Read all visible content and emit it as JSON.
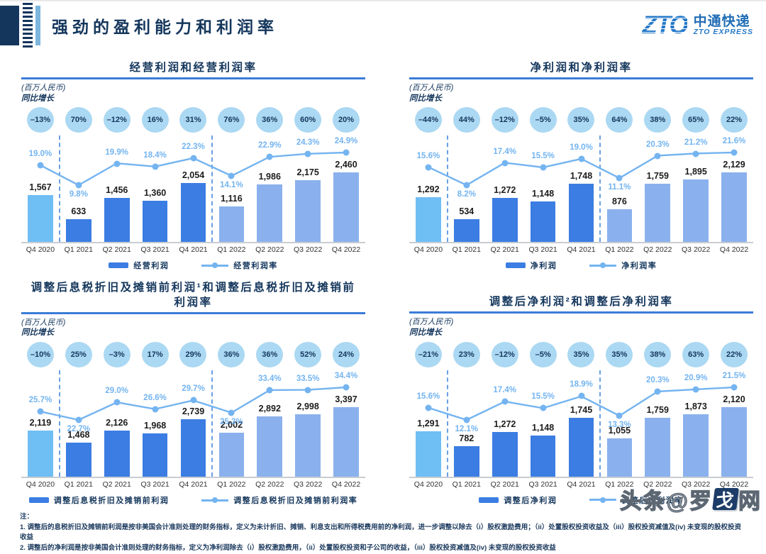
{
  "page": {
    "title": "强劲的盈利能力和利润率",
    "logo": {
      "zto": "ZTO",
      "cn": "中通快递",
      "en": "ZTO EXPRESS"
    },
    "notes": {
      "heading": "注：",
      "items": [
        "1. 调整后的息税折旧及摊销前利润是按非美国会计准则处理的财务指标，定义为未计折旧、摊销、利息支出和所得税费用前的净利润，进一步调整以除去（i）股权激励费用；（ii）处置股权投资收益及（iii）股权投资减值及(iv) 未变现的股权投资收益",
        "2. 调整后的净利润是按非美国会计准则处理的财务指标，定义为净利润除去（i）股权激励费用，（ii）处置股权投资和子公司的收益，（iii）股权投资减值及(iv) 未变现的股权投资收益"
      ]
    },
    "watermark": {
      "prefix": "头条@罗",
      "logo_char": "戈",
      "suffix": "网"
    }
  },
  "colors": {
    "navy": "#14365c",
    "title_underline": "#3b7cd8",
    "bubble_bg": "#abd8f2",
    "bar_2020": "#6fbef4",
    "bar_2021": "#3b7de2",
    "bar_2022": "#8ab1ed",
    "line": "#74b4f0",
    "separator": "#6aa0e4"
  },
  "chart_data": [
    {
      "type": "bar+line",
      "title": "经营利润和经营利润率",
      "unit_label": "(百万人民币)",
      "yoy_label": "同比增长",
      "categories": [
        "Q4 2020",
        "Q1 2021",
        "Q2 2021",
        "Q3 2021",
        "Q4 2021",
        "Q1 2022",
        "Q2 2022",
        "Q3 2022",
        "Q4 2022"
      ],
      "yoy_growth": [
        "–13%",
        "70%",
        "–12%",
        "16%",
        "31%",
        "76%",
        "36%",
        "60%",
        "20%"
      ],
      "bar_series": {
        "name": "经营利润",
        "values": [
          1567,
          633,
          1456,
          1360,
          2054,
          1116,
          1986,
          2175,
          2460
        ],
        "labels": [
          "1,567",
          "633",
          "1,456",
          "1,360",
          "2,054",
          "1,116",
          "1,986",
          "2,175",
          "2,460"
        ]
      },
      "line_series": {
        "name": "经营利润率",
        "values": [
          19.0,
          9.8,
          19.9,
          18.4,
          22.3,
          14.1,
          22.9,
          24.3,
          24.9
        ],
        "labels": [
          "19.0%",
          "9.8%",
          "19.9%",
          "18.4%",
          "22.3%",
          "14.1%",
          "22.9%",
          "24.3%",
          "24.9%"
        ]
      }
    },
    {
      "type": "bar+line",
      "title": "净利润和净利润率",
      "unit_label": "(百万人民币)",
      "yoy_label": "同比增长",
      "categories": [
        "Q4 2020",
        "Q1 2021",
        "Q2 2021",
        "Q3 2021",
        "Q4 2021",
        "Q1 2022",
        "Q2 2022",
        "Q3 2022",
        "Q4 2022"
      ],
      "yoy_growth": [
        "–44%",
        "44%",
        "–12%",
        "–5%",
        "35%",
        "64%",
        "38%",
        "65%",
        "22%"
      ],
      "bar_series": {
        "name": "净利润",
        "values": [
          1292,
          534,
          1272,
          1148,
          1748,
          876,
          1759,
          1895,
          2129
        ],
        "labels": [
          "1,292",
          "534",
          "1,272",
          "1,148",
          "1,748",
          "876",
          "1,759",
          "1,895",
          "2,129"
        ]
      },
      "line_series": {
        "name": "净利润率",
        "values": [
          15.6,
          8.2,
          17.4,
          15.5,
          19.0,
          11.1,
          20.3,
          21.2,
          21.6
        ],
        "labels": [
          "15.6%",
          "8.2%",
          "17.4%",
          "15.5%",
          "19.0%",
          "11.1%",
          "20.3%",
          "21.2%",
          "21.6%"
        ]
      }
    },
    {
      "type": "bar+line",
      "title": "调整后息税折旧及摊销前利润¹和调整后息税折旧及摊销前利润率",
      "unit_label": "(百万人民币)",
      "yoy_label": "同比增长",
      "categories": [
        "Q4 2020",
        "Q1 2021",
        "Q2 2021",
        "Q3 2021",
        "Q4 2021",
        "Q1 2022",
        "Q2 2022",
        "Q3 2022",
        "Q4 2022"
      ],
      "yoy_growth": [
        "–10%",
        "25%",
        "–3%",
        "17%",
        "29%",
        "36%",
        "36%",
        "52%",
        "24%"
      ],
      "bar_series": {
        "name": "调整后息税折旧及摊销前利润",
        "values": [
          2119,
          1468,
          2126,
          1968,
          2739,
          2002,
          2892,
          2998,
          3397
        ],
        "labels": [
          "2,119",
          "1,468",
          "2,126",
          "1,968",
          "2,739",
          "2,002",
          "2,892",
          "2,998",
          "3,397"
        ]
      },
      "line_series": {
        "name": "调整后息税折旧及摊销前利润率",
        "values": [
          25.7,
          22.7,
          29.0,
          26.6,
          29.7,
          25.3,
          33.4,
          33.5,
          34.4
        ],
        "labels": [
          "25.7%",
          "22.7%",
          "29.0%",
          "26.6%",
          "29.7%",
          "25.3%",
          "33.4%",
          "33.5%",
          "34.4%"
        ]
      }
    },
    {
      "type": "bar+line",
      "title": "调整后净利润²和调整后净利润率",
      "unit_label": "(百万人民币)",
      "yoy_label": "同比增长",
      "categories": [
        "Q4 2020",
        "Q1 2021",
        "Q2 2021",
        "Q3 2021",
        "Q4 2021",
        "Q1 2022",
        "Q2 2022",
        "Q3 2022",
        "Q4 2022"
      ],
      "yoy_growth": [
        "–21%",
        "23%",
        "–12%",
        "–5%",
        "35%",
        "35%",
        "38%",
        "63%",
        "22%"
      ],
      "bar_series": {
        "name": "调整后净利润",
        "values": [
          1291,
          782,
          1272,
          1148,
          1745,
          1055,
          1759,
          1873,
          2120
        ],
        "labels": [
          "1,291",
          "782",
          "1,272",
          "1,148",
          "1,745",
          "1,055",
          "1,759",
          "1,873",
          "2,120"
        ]
      },
      "line_series": {
        "name": "调整后净利润率",
        "values": [
          15.6,
          12.1,
          17.4,
          15.5,
          18.9,
          13.3,
          20.3,
          20.9,
          21.5
        ],
        "labels": [
          "15.6%",
          "12.1%",
          "17.4%",
          "15.5%",
          "18.9%",
          "13.3%",
          "20.3%",
          "20.9%",
          "21.5%"
        ]
      }
    }
  ]
}
